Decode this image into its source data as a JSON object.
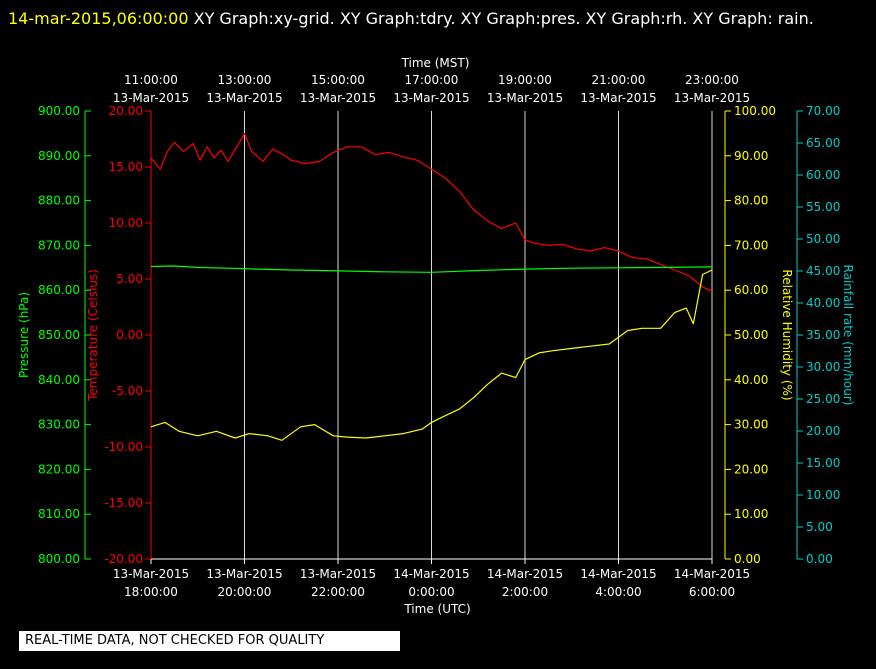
{
  "header": {
    "timestamp": "14-mar-2015,06:00:00",
    "titles": "XY Graph:xy-grid.  XY Graph:tdry.  XY Graph:pres.  XY Graph:rh.  XY Graph: rain."
  },
  "disclaimer": "REAL-TIME DATA, NOT CHECKED FOR QUALITY",
  "colors": {
    "background": "#000000",
    "grid": "#ffffff",
    "temperature": "#ff0000",
    "pressure": "#00ff00",
    "humidity": "#ffff00",
    "rain": "#00cccc",
    "text": "#ffffff"
  },
  "chart_data": {
    "type": "line",
    "x_top": {
      "label": "Time (MST)",
      "ticks": [
        {
          "time": "11:00:00",
          "date": "13-Mar-2015"
        },
        {
          "time": "13:00:00",
          "date": "13-Mar-2015"
        },
        {
          "time": "15:00:00",
          "date": "13-Mar-2015"
        },
        {
          "time": "17:00:00",
          "date": "13-Mar-2015"
        },
        {
          "time": "19:00:00",
          "date": "13-Mar-2015"
        },
        {
          "time": "21:00:00",
          "date": "13-Mar-2015"
        },
        {
          "time": "23:00:00",
          "date": "13-Mar-2015"
        }
      ]
    },
    "x_bottom": {
      "label": "Time (UTC)",
      "ticks": [
        {
          "date": "13-Mar-2015",
          "time": "18:00:00"
        },
        {
          "date": "13-Mar-2015",
          "time": "20:00:00"
        },
        {
          "date": "13-Mar-2015",
          "time": "22:00:00"
        },
        {
          "date": "14-Mar-2015",
          "time": "0:00:00"
        },
        {
          "date": "14-Mar-2015",
          "time": "2:00:00"
        },
        {
          "date": "14-Mar-2015",
          "time": "4:00:00"
        },
        {
          "date": "14-Mar-2015",
          "time": "6:00:00"
        }
      ]
    },
    "y_axes": [
      {
        "key": "pressure",
        "label": "Pressure (hPa)",
        "range": [
          800,
          900
        ],
        "ticks": [
          "800.00",
          "810.00",
          "820.00",
          "830.00",
          "840.00",
          "850.00",
          "860.00",
          "870.00",
          "880.00",
          "890.00",
          "900.00"
        ]
      },
      {
        "key": "temperature",
        "label": "Temperature (Celsius)",
        "range": [
          -20,
          20
        ],
        "ticks": [
          "-20.00",
          "-15.00",
          "-10.00",
          "-5.00",
          "0.00",
          "5.00",
          "10.00",
          "15.00",
          "20.00"
        ]
      },
      {
        "key": "humidity",
        "label": "Relative Humidity (%)",
        "range": [
          0,
          100
        ],
        "ticks": [
          "0.00",
          "10.00",
          "20.00",
          "30.00",
          "40.00",
          "50.00",
          "60.00",
          "70.00",
          "80.00",
          "90.00",
          "100.00"
        ]
      },
      {
        "key": "rain",
        "label": "Rainfall rate (mm/hour)",
        "range": [
          0,
          70
        ],
        "ticks": [
          "0.00",
          "5.00",
          "10.00",
          "15.00",
          "20.00",
          "25.00",
          "30.00",
          "35.00",
          "40.00",
          "45.00",
          "50.00",
          "55.00",
          "60.00",
          "65.00",
          "70.00"
        ]
      }
    ],
    "x_hours_utc_range": [
      18,
      30
    ],
    "series": [
      {
        "key": "temperature",
        "x_hours_utc": [
          18.0,
          18.2,
          18.35,
          18.5,
          18.7,
          18.9,
          19.05,
          19.2,
          19.35,
          19.5,
          19.65,
          19.85,
          20.0,
          20.15,
          20.4,
          20.6,
          20.8,
          21.0,
          21.3,
          21.6,
          21.9,
          22.2,
          22.5,
          22.8,
          23.1,
          23.4,
          23.7,
          24.0,
          24.3,
          24.6,
          24.9,
          25.2,
          25.5,
          25.8,
          26.0,
          26.2,
          26.5,
          26.8,
          27.1,
          27.4,
          27.7,
          28.0,
          28.3,
          28.6,
          28.9,
          29.2,
          29.5,
          29.8,
          30.0
        ],
        "values": [
          15.8,
          14.8,
          16.4,
          17.2,
          16.4,
          17.1,
          15.6,
          16.8,
          15.8,
          16.5,
          15.5,
          16.9,
          18.0,
          16.4,
          15.5,
          16.6,
          16.2,
          15.6,
          15.3,
          15.5,
          16.3,
          16.8,
          16.8,
          16.1,
          16.3,
          15.9,
          15.6,
          14.8,
          14.0,
          12.8,
          11.2,
          10.2,
          9.5,
          10.0,
          8.5,
          8.2,
          8.0,
          8.1,
          7.7,
          7.5,
          7.8,
          7.5,
          6.9,
          6.8,
          6.3,
          5.8,
          5.3,
          4.3,
          3.9
        ]
      },
      {
        "key": "pressure",
        "x_hours_utc": [
          18.0,
          18.5,
          19.0,
          20.0,
          21.0,
          22.0,
          23.0,
          24.0,
          25.0,
          26.0,
          27.0,
          28.0,
          29.0,
          30.0
        ],
        "values": [
          865.3,
          865.4,
          865.1,
          864.8,
          864.5,
          864.3,
          864.1,
          864.0,
          864.4,
          864.7,
          864.9,
          865.0,
          865.1,
          865.2
        ]
      },
      {
        "key": "humidity",
        "x_hours_utc": [
          18.0,
          18.3,
          18.6,
          19.0,
          19.4,
          19.8,
          20.1,
          20.5,
          20.8,
          21.2,
          21.5,
          21.9,
          22.2,
          22.6,
          23.0,
          23.4,
          23.8,
          24.0,
          24.3,
          24.6,
          24.9,
          25.2,
          25.5,
          25.8,
          26.0,
          26.3,
          26.6,
          27.0,
          27.4,
          27.8,
          28.2,
          28.5,
          28.9,
          29.2,
          29.45,
          29.6,
          29.8,
          30.0
        ],
        "values": [
          29.5,
          30.5,
          28.5,
          27.5,
          28.5,
          27.0,
          28.0,
          27.5,
          26.5,
          29.5,
          30.0,
          27.5,
          27.2,
          27.0,
          27.5,
          28.0,
          29.0,
          30.5,
          32.0,
          33.5,
          36.0,
          39.0,
          41.5,
          40.5,
          44.5,
          46.0,
          46.5,
          47.0,
          47.5,
          48.0,
          51.0,
          51.5,
          51.5,
          55.0,
          56.0,
          52.5,
          63.5,
          64.5
        ]
      },
      {
        "key": "rain",
        "x_hours_utc": [],
        "values": []
      }
    ]
  }
}
